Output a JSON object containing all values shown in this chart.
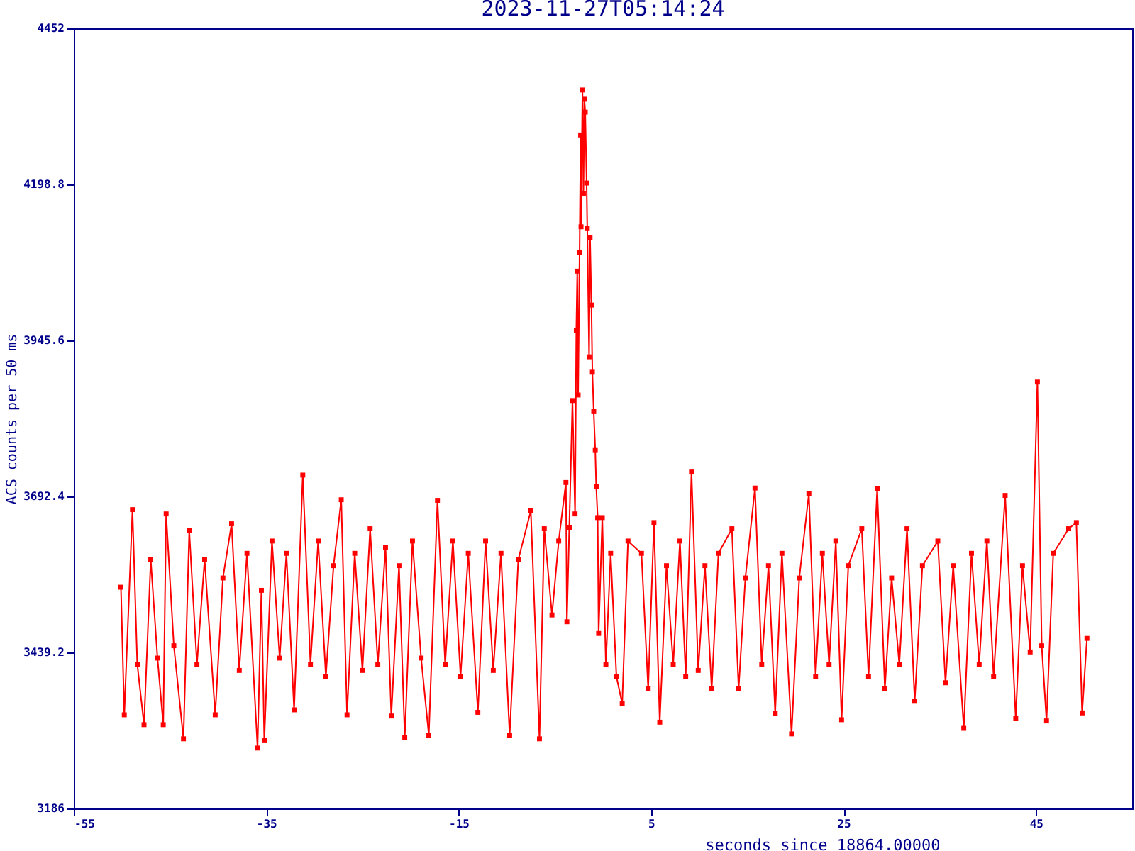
{
  "chart_data": {
    "type": "line",
    "title": "2023-11-27T05:14:24",
    "xlabel": "seconds since 18864.00000",
    "ylabel": "ACS counts per 50 ms",
    "color": "#ff0000",
    "marker": "square",
    "xlim": [
      -55,
      55
    ],
    "xticks": [
      -55,
      -35,
      -15,
      5,
      25,
      45
    ],
    "ylim": [
      3186,
      4452
    ],
    "yticks": [
      3186,
      3439.2,
      3692.4,
      3945.6,
      4198.8,
      4452
    ],
    "x": [
      -50.1,
      -49.75,
      -48.9,
      -48.4,
      -47.7,
      -47.0,
      -46.3,
      -45.7,
      -45.4,
      -44.6,
      -43.6,
      -43.0,
      -42.2,
      -41.4,
      -40.3,
      -39.5,
      -38.6,
      -37.8,
      -37.0,
      -35.9,
      -35.5,
      -35.2,
      -34.4,
      -33.6,
      -32.9,
      -32.1,
      -31.2,
      -30.4,
      -29.6,
      -28.8,
      -28.0,
      -27.2,
      -26.6,
      -25.8,
      -25.0,
      -24.2,
      -23.4,
      -22.6,
      -22.0,
      -21.2,
      -20.6,
      -19.8,
      -18.9,
      -18.1,
      -17.2,
      -16.4,
      -15.6,
      -14.8,
      -14.0,
      -13.0,
      -12.2,
      -11.4,
      -10.6,
      -9.7,
      -8.8,
      -7.5,
      -6.6,
      -6.1,
      -5.3,
      -4.6,
      -3.85,
      -3.75,
      -3.5,
      -3.17,
      -2.9,
      -2.77,
      -2.67,
      -2.58,
      -2.43,
      -2.32,
      -2.28,
      -2.13,
      -2.03,
      -1.93,
      -1.84,
      -1.7,
      -1.63,
      -1.44,
      -1.34,
      -1.2,
      -1.1,
      -0.96,
      -0.8,
      -0.7,
      -0.55,
      -0.45,
      -0.07,
      0.3,
      0.8,
      1.4,
      2.0,
      2.6,
      4.0,
      4.7,
      5.3,
      5.9,
      6.6,
      7.3,
      8.0,
      8.6,
      9.2,
      9.9,
      10.6,
      11.3,
      12.0,
      13.4,
      14.1,
      14.8,
      15.8,
      16.5,
      17.2,
      17.9,
      18.6,
      19.6,
      20.4,
      21.4,
      22.1,
      22.8,
      23.5,
      24.2,
      24.8,
      25.5,
      26.9,
      27.6,
      28.5,
      29.3,
      30.0,
      30.8,
      31.6,
      32.4,
      33.2,
      34.8,
      35.6,
      36.4,
      37.5,
      38.3,
      39.1,
      39.9,
      40.6,
      41.8,
      42.9,
      43.6,
      44.4,
      45.15,
      45.6,
      46.1,
      46.8,
      48.4,
      49.2,
      49.8,
      50.3
    ],
    "values": [
      3545,
      3338,
      3671,
      3420,
      3322,
      3590,
      3430,
      3322,
      3664,
      3450,
      3299,
      3637,
      3420,
      3590,
      3338,
      3560,
      3648,
      3410,
      3600,
      3284,
      3540,
      3296,
      3620,
      3430,
      3600,
      3346,
      3727,
      3420,
      3620,
      3400,
      3580,
      3687,
      3338,
      3600,
      3410,
      3640,
      3420,
      3610,
      3336,
      3580,
      3301,
      3620,
      3430,
      3305,
      3686,
      3420,
      3620,
      3400,
      3600,
      3342,
      3620,
      3410,
      3600,
      3305,
      3590,
      3669,
      3299,
      3640,
      3500,
      3620,
      3715,
      3489,
      3642,
      3848,
      3664,
      3962,
      4058,
      3857,
      4088,
      4279,
      4130,
      4352,
      4184,
      4337,
      4316,
      4201,
      4127,
      3919,
      4113,
      4003,
      3894,
      3830,
      3767,
      3708,
      3658,
      3470,
      3658,
      3420,
      3600,
      3400,
      3356,
      3620,
      3600,
      3380,
      3650,
      3326,
      3580,
      3420,
      3620,
      3400,
      3732,
      3410,
      3580,
      3380,
      3600,
      3640,
      3380,
      3560,
      3706,
      3420,
      3580,
      3340,
      3600,
      3307,
      3560,
      3697,
      3400,
      3600,
      3420,
      3620,
      3330,
      3580,
      3640,
      3400,
      3705,
      3380,
      3560,
      3420,
      3640,
      3360,
      3580,
      3620,
      3390,
      3580,
      3316,
      3600,
      3420,
      3620,
      3400,
      3694,
      3332,
      3580,
      3440,
      3878,
      3450,
      3328,
      3600,
      3640,
      3650,
      3341,
      3462
    ]
  }
}
